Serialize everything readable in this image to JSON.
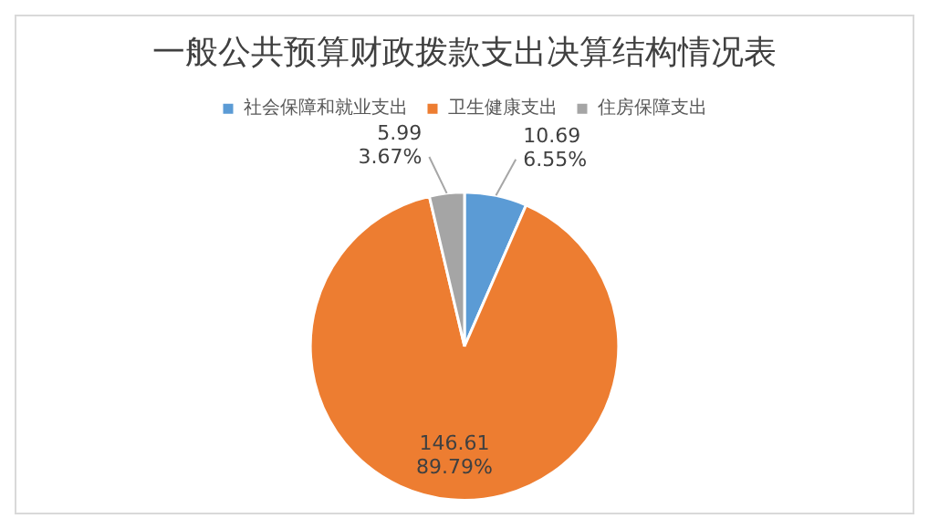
{
  "chart_data": {
    "type": "pie",
    "title": "一般公共预算财政拨款支出决算结构情况表",
    "categories": [
      "社会保障和就业支出",
      "卫生健康支出",
      "住房保障支出"
    ],
    "values": [
      10.69,
      146.61,
      5.99
    ],
    "colors": [
      "#5b9bd5",
      "#ed7d31",
      "#a5a5a5"
    ],
    "value_labels": [
      "10.69\n6.55%",
      "146.61\n89.79%",
      "5.99\n3.67%"
    ],
    "legend": "top"
  }
}
